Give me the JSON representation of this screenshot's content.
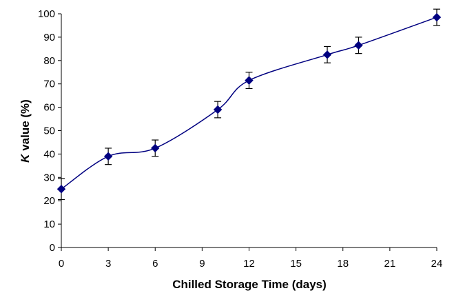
{
  "chart_data": {
    "type": "line",
    "title": "",
    "xlabel": "Chilled Storage Time (days)",
    "ylabel_italic_part": "K",
    "ylabel_rest": " value (%)",
    "xlim": [
      0,
      24
    ],
    "ylim": [
      0,
      100
    ],
    "xticks": [
      0,
      3,
      6,
      9,
      12,
      15,
      18,
      21,
      24
    ],
    "yticks": [
      0,
      10,
      20,
      30,
      40,
      50,
      60,
      70,
      80,
      90,
      100
    ],
    "grid": false,
    "legend": "none",
    "marker": "diamond",
    "smooth": true,
    "series": [
      {
        "color": "#000080",
        "x": [
          0,
          3,
          6,
          10,
          12,
          17,
          19,
          24
        ],
        "y": [
          25,
          39,
          42.5,
          59,
          71.5,
          82.5,
          86.5,
          98.5
        ],
        "error": [
          4.5,
          3.5,
          3.5,
          3.5,
          3.5,
          3.5,
          3.5,
          3.5
        ]
      }
    ]
  }
}
